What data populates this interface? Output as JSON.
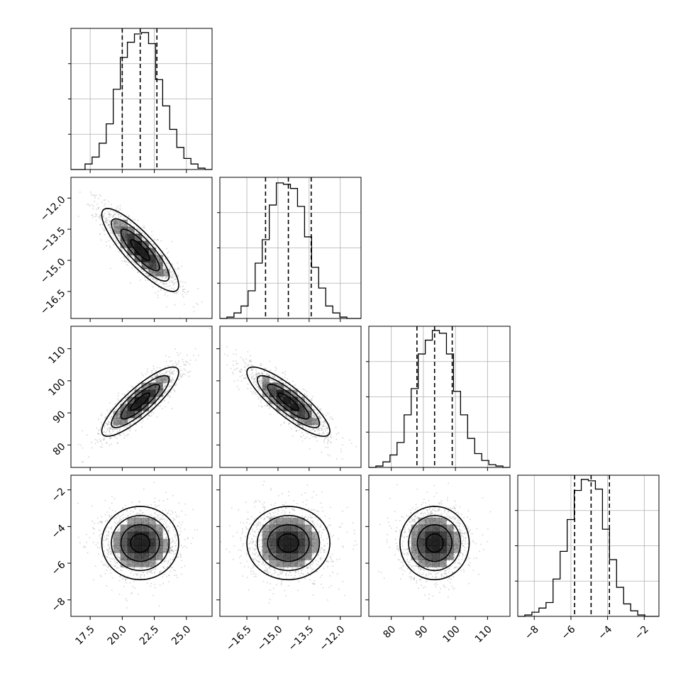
{
  "chart_data": {
    "type": "corner",
    "grid": true,
    "colors": {
      "hist": "#000000",
      "contour": "#000000",
      "density": "#000000",
      "points": "#9a9a9a",
      "grid": "#b0b0b0"
    },
    "params": [
      {
        "range": [
          16,
          27
        ],
        "ticks": [
          17.5,
          20.0,
          22.5,
          25.0
        ],
        "tick_labels": [
          "17.5",
          "20.0",
          "22.5",
          "25.0"
        ],
        "quantiles": [
          20.0,
          21.4,
          22.7
        ],
        "hist": [
          0,
          0,
          0.04,
          0.09,
          0.19,
          0.33,
          0.58,
          0.81,
          0.92,
          0.98,
          0.99,
          0.91,
          0.65,
          0.46,
          0.29,
          0.16,
          0.08,
          0.04,
          0.01,
          0
        ]
      },
      {
        "range": [
          -17.8,
          -11.0
        ],
        "ticks": [
          -16.5,
          -15.0,
          -13.5,
          -12.0
        ],
        "tick_labels": [
          "−16.5",
          "−15.0",
          "−13.5",
          "−12.0"
        ],
        "quantiles": [
          -15.6,
          -14.5,
          -13.4
        ],
        "hist": [
          0,
          0.01,
          0.04,
          0.09,
          0.2,
          0.4,
          0.57,
          0.82,
          0.98,
          0.97,
          0.94,
          0.81,
          0.59,
          0.37,
          0.22,
          0.09,
          0.04,
          0.01,
          0,
          0
        ]
      },
      {
        "range": [
          73,
          117
        ],
        "ticks": [
          80,
          90,
          100,
          110
        ],
        "tick_labels": [
          "80",
          "90",
          "100",
          "110"
        ],
        "quantiles": [
          88,
          93.5,
          99
        ],
        "hist": [
          0,
          0.01,
          0.04,
          0.09,
          0.18,
          0.38,
          0.57,
          0.82,
          0.92,
          0.99,
          0.97,
          0.82,
          0.55,
          0.38,
          0.21,
          0.1,
          0.05,
          0.02,
          0.01,
          0
        ]
      },
      {
        "range": [
          -8.9,
          -1.2
        ],
        "ticks": [
          -8,
          -6,
          -4,
          -2
        ],
        "tick_labels": [
          "−8",
          "−6",
          "−4",
          "−2"
        ],
        "quantiles": [
          -5.8,
          -4.9,
          -3.9
        ],
        "hist": [
          0,
          0.01,
          0.03,
          0.06,
          0.1,
          0.27,
          0.47,
          0.7,
          0.91,
          0.99,
          0.98,
          0.92,
          0.63,
          0.41,
          0.21,
          0.09,
          0.04,
          0.01,
          0,
          0
        ]
      }
    ],
    "pairs": [
      {
        "x": 0,
        "y": 1,
        "mean": [
          21.4,
          -14.5
        ],
        "sd": [
          1.5,
          1.0
        ],
        "rho": -0.85
      },
      {
        "x": 0,
        "y": 2,
        "mean": [
          21.4,
          93.5
        ],
        "sd": [
          1.5,
          5.4
        ],
        "rho": 0.85
      },
      {
        "x": 1,
        "y": 2,
        "mean": [
          -14.5,
          93.5
        ],
        "sd": [
          1.0,
          5.4
        ],
        "rho": -0.85
      },
      {
        "x": 0,
        "y": 3,
        "mean": [
          21.4,
          -4.9
        ],
        "sd": [
          1.5,
          1.0
        ],
        "rho": 0.0
      },
      {
        "x": 1,
        "y": 3,
        "mean": [
          -14.5,
          -4.9
        ],
        "sd": [
          1.0,
          1.0
        ],
        "rho": 0.0
      },
      {
        "x": 2,
        "y": 3,
        "mean": [
          93.5,
          -4.9
        ],
        "sd": [
          5.4,
          1.0
        ],
        "rho": 0.0
      }
    ]
  }
}
